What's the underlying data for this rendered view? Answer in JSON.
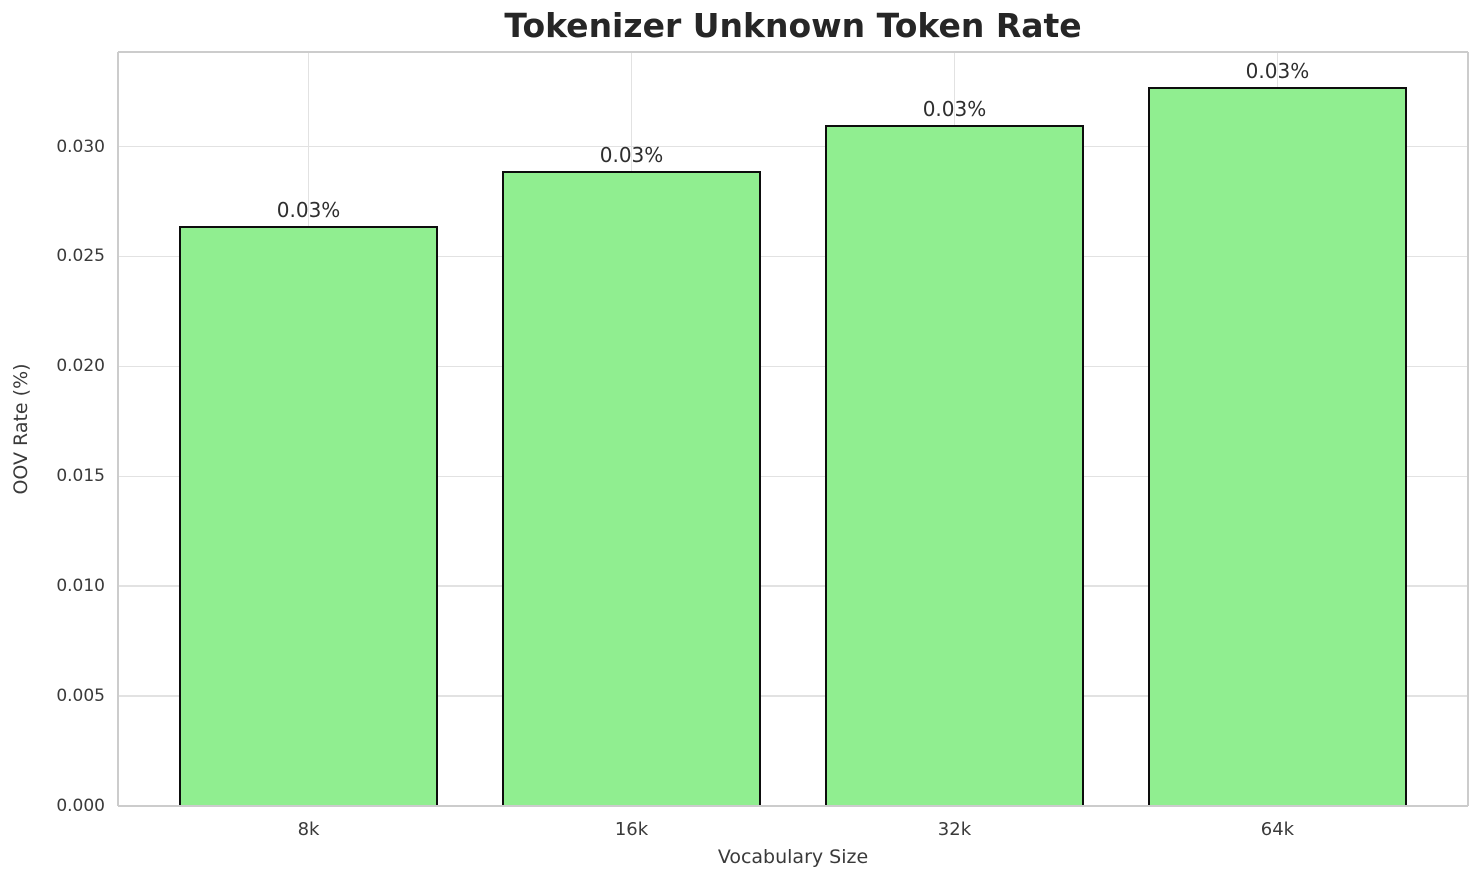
{
  "chart_data": {
    "type": "bar",
    "title": "Tokenizer Unknown Token Rate",
    "xlabel": "Vocabulary Size",
    "ylabel": "OOV Rate (%)",
    "categories": [
      "8k",
      "16k",
      "32k",
      "64k"
    ],
    "values": [
      0.0264,
      0.0289,
      0.031,
      0.0327
    ],
    "bar_labels": [
      "0.03%",
      "0.03%",
      "0.03%",
      "0.03%"
    ],
    "ylim": [
      0,
      0.0343
    ],
    "yticks": [
      0.0,
      0.005,
      0.01,
      0.015,
      0.02,
      0.025,
      0.03
    ],
    "ytick_labels": [
      "0.000",
      "0.005",
      "0.010",
      "0.015",
      "0.020",
      "0.025",
      "0.030"
    ],
    "grid": true,
    "legend": "none",
    "colors": {
      "bar_fill": "#90EE90",
      "bar_edge": "#0d0d0d",
      "grid": "#e2e2e2",
      "spine": "#cccccc",
      "tick_text": "#3a3a3a",
      "title_text": "#262626",
      "background": "#ffffff"
    }
  }
}
